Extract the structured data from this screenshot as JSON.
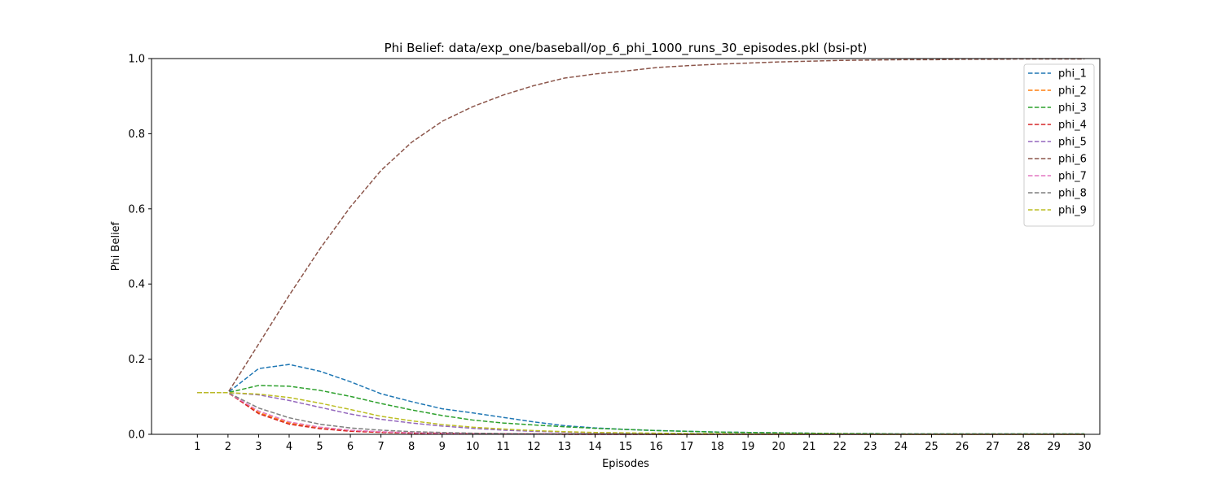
{
  "chart_data": {
    "type": "line",
    "title": "Phi Belief: data/exp_one/baseball/op_6_phi_1000_runs_30_episodes.pkl (bsi-pt)",
    "xlabel": "Episodes",
    "ylabel": "Phi Belief",
    "ylim": [
      0,
      1.0
    ],
    "xlim": [
      -0.5,
      30.5
    ],
    "x": [
      1,
      2,
      3,
      4,
      5,
      6,
      7,
      8,
      9,
      10,
      11,
      12,
      13,
      14,
      15,
      16,
      17,
      18,
      19,
      20,
      21,
      22,
      23,
      24,
      25,
      26,
      27,
      28,
      29,
      30
    ],
    "x_tick_labels": [
      "1",
      "2",
      "3",
      "4",
      "5",
      "6",
      "7",
      "8",
      "9",
      "10",
      "11",
      "12",
      "13",
      "14",
      "15",
      "16",
      "17",
      "18",
      "19",
      "20",
      "21",
      "22",
      "23",
      "24",
      "25",
      "26",
      "27",
      "28",
      "29",
      "30"
    ],
    "y_ticks": [
      0.0,
      0.2,
      0.4,
      0.6,
      0.8,
      1.0
    ],
    "y_tick_labels": [
      "0.0",
      "0.2",
      "0.4",
      "0.6",
      "0.8",
      "1.0"
    ],
    "line_style": "dashed",
    "legend_position": "top-right",
    "series": [
      {
        "name": "phi_1",
        "color": "#1f77b4",
        "values": [
          0.111,
          0.111,
          0.175,
          0.186,
          0.168,
          0.14,
          0.108,
          0.087,
          0.068,
          0.057,
          0.045,
          0.033,
          0.023,
          0.017,
          0.013,
          0.01,
          0.008,
          0.006,
          0.005,
          0.004,
          0.003,
          0.002,
          0.002,
          0.001,
          0.001,
          0.001,
          0.001,
          0.001,
          0.001,
          0.001
        ]
      },
      {
        "name": "phi_2",
        "color": "#ff7f0e",
        "values": [
          0.111,
          0.111,
          0.058,
          0.03,
          0.018,
          0.01,
          0.006,
          0.004,
          0.003,
          0.002,
          0.001,
          0.001,
          0.001,
          0.001,
          0.0,
          0.0,
          0.0,
          0.0,
          0.0,
          0.0,
          0.0,
          0.0,
          0.0,
          0.0,
          0.0,
          0.0,
          0.0,
          0.0,
          0.0,
          0.0
        ]
      },
      {
        "name": "phi_3",
        "color": "#2ca02c",
        "values": [
          0.111,
          0.111,
          0.13,
          0.128,
          0.117,
          0.101,
          0.082,
          0.065,
          0.05,
          0.038,
          0.03,
          0.025,
          0.02,
          0.016,
          0.013,
          0.01,
          0.008,
          0.006,
          0.005,
          0.004,
          0.003,
          0.002,
          0.002,
          0.001,
          0.001,
          0.001,
          0.001,
          0.001,
          0.001,
          0.001
        ]
      },
      {
        "name": "phi_4",
        "color": "#d62728",
        "values": [
          0.111,
          0.111,
          0.055,
          0.027,
          0.015,
          0.008,
          0.005,
          0.003,
          0.002,
          0.001,
          0.001,
          0.001,
          0.0,
          0.0,
          0.0,
          0.0,
          0.0,
          0.0,
          0.0,
          0.0,
          0.0,
          0.0,
          0.0,
          0.0,
          0.0,
          0.0,
          0.0,
          0.0,
          0.0,
          0.0
        ]
      },
      {
        "name": "phi_5",
        "color": "#9467bd",
        "values": [
          0.111,
          0.111,
          0.105,
          0.09,
          0.072,
          0.054,
          0.04,
          0.03,
          0.022,
          0.016,
          0.011,
          0.008,
          0.006,
          0.004,
          0.003,
          0.002,
          0.002,
          0.001,
          0.001,
          0.001,
          0.0,
          0.0,
          0.0,
          0.0,
          0.0,
          0.0,
          0.0,
          0.0,
          0.0,
          0.0
        ]
      },
      {
        "name": "phi_6",
        "color": "#8c564b",
        "values": [
          0.111,
          0.111,
          0.24,
          0.37,
          0.493,
          0.605,
          0.702,
          0.777,
          0.833,
          0.872,
          0.903,
          0.928,
          0.948,
          0.959,
          0.967,
          0.976,
          0.981,
          0.985,
          0.988,
          0.991,
          0.993,
          0.995,
          0.996,
          0.997,
          0.997,
          0.998,
          0.998,
          0.999,
          0.999,
          0.999
        ]
      },
      {
        "name": "phi_7",
        "color": "#e377c2",
        "values": [
          0.111,
          0.111,
          0.062,
          0.033,
          0.019,
          0.011,
          0.007,
          0.004,
          0.003,
          0.002,
          0.001,
          0.001,
          0.001,
          0.0,
          0.0,
          0.0,
          0.0,
          0.0,
          0.0,
          0.0,
          0.0,
          0.0,
          0.0,
          0.0,
          0.0,
          0.0,
          0.0,
          0.0,
          0.0,
          0.0
        ]
      },
      {
        "name": "phi_8",
        "color": "#7f7f7f",
        "values": [
          0.111,
          0.111,
          0.07,
          0.044,
          0.027,
          0.017,
          0.011,
          0.007,
          0.005,
          0.003,
          0.002,
          0.001,
          0.001,
          0.001,
          0.001,
          0.0,
          0.0,
          0.0,
          0.0,
          0.0,
          0.0,
          0.0,
          0.0,
          0.0,
          0.0,
          0.0,
          0.0,
          0.0,
          0.0,
          0.0
        ]
      },
      {
        "name": "phi_9",
        "color": "#bcbd22",
        "values": [
          0.111,
          0.111,
          0.107,
          0.098,
          0.083,
          0.066,
          0.048,
          0.036,
          0.026,
          0.019,
          0.014,
          0.01,
          0.007,
          0.005,
          0.004,
          0.003,
          0.002,
          0.002,
          0.001,
          0.001,
          0.001,
          0.001,
          0.0,
          0.0,
          0.0,
          0.0,
          0.0,
          0.0,
          0.0,
          0.0
        ]
      }
    ]
  }
}
